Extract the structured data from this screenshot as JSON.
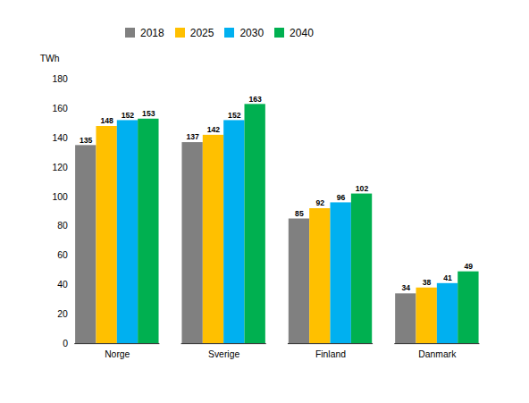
{
  "chart_data": {
    "type": "bar",
    "categories": [
      "Norge",
      "Sverige",
      "Finland",
      "Danmark"
    ],
    "series": [
      {
        "name": "2018",
        "color": "#808080",
        "values": [
          135,
          137,
          85,
          34
        ]
      },
      {
        "name": "2025",
        "color": "#ffc000",
        "values": [
          148,
          142,
          92,
          38
        ]
      },
      {
        "name": "2030",
        "color": "#00b0f0",
        "values": [
          152,
          152,
          96,
          41
        ]
      },
      {
        "name": "2040",
        "color": "#00b050",
        "values": [
          153,
          163,
          102,
          49
        ]
      }
    ],
    "ylabel": "TWh",
    "ylim": [
      0,
      180
    ],
    "yticks": [
      0,
      20,
      40,
      60,
      80,
      100,
      120,
      140,
      160,
      180
    ],
    "data_labels": true,
    "grid": false,
    "legend": "top"
  }
}
